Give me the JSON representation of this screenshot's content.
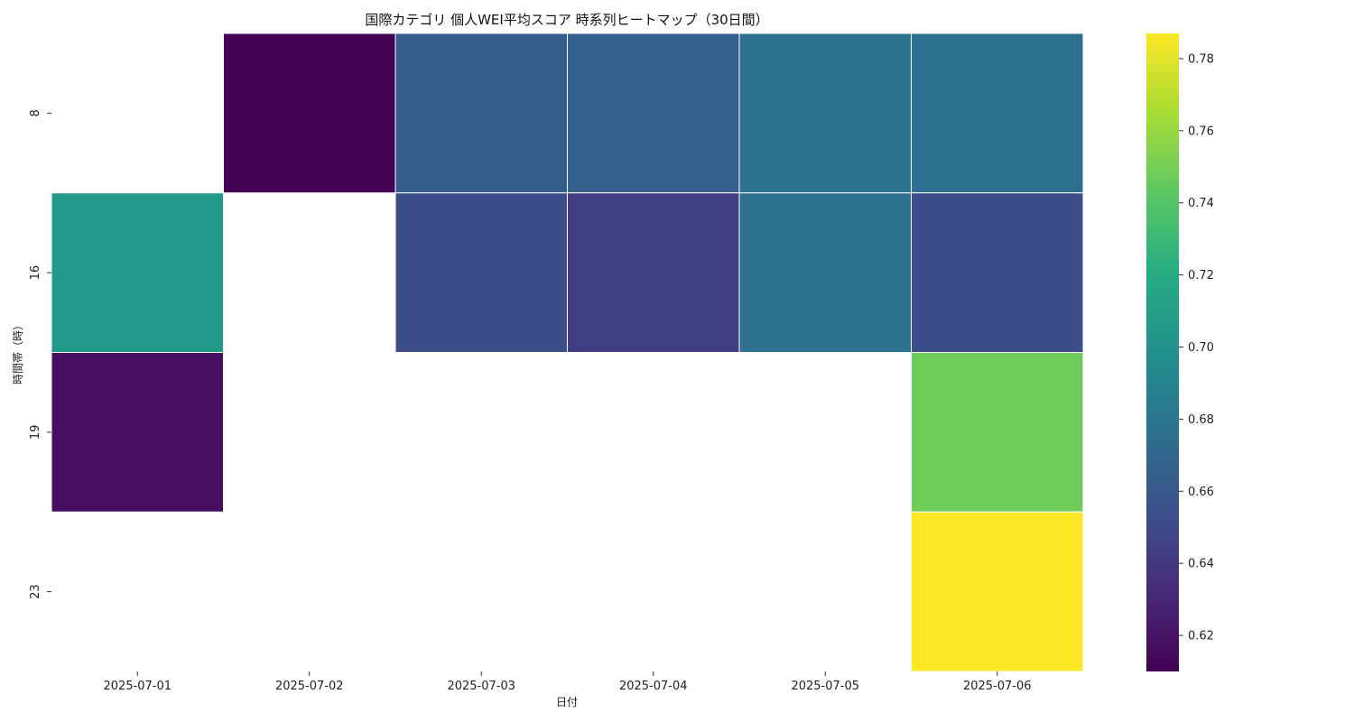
{
  "chart_data": {
    "type": "heatmap",
    "title": "国際カテゴリ 個人WEI平均スコア 時系列ヒートマップ（30日間）",
    "xlabel": "日付",
    "ylabel": "時間帯（時）",
    "x": [
      "2025-07-01",
      "2025-07-02",
      "2025-07-03",
      "2025-07-04",
      "2025-07-05",
      "2025-07-06"
    ],
    "y": [
      "8",
      "16",
      "19",
      "23"
    ],
    "values": [
      [
        null,
        0.61,
        0.662,
        0.664,
        0.677,
        0.676
      ],
      [
        0.706,
        null,
        0.652,
        0.643,
        0.677,
        0.652
      ],
      [
        0.617,
        null,
        null,
        null,
        null,
        0.748
      ],
      [
        null,
        null,
        null,
        null,
        null,
        0.787
      ]
    ],
    "colormap": "viridis",
    "colorbar": {
      "range": [
        0.61,
        0.787
      ],
      "ticks": [
        "0.62",
        "0.64",
        "0.66",
        "0.68",
        "0.70",
        "0.72",
        "0.74",
        "0.76",
        "0.78"
      ]
    },
    "cell_border_color": "#ffffff",
    "missing_color": "#ffffff"
  }
}
